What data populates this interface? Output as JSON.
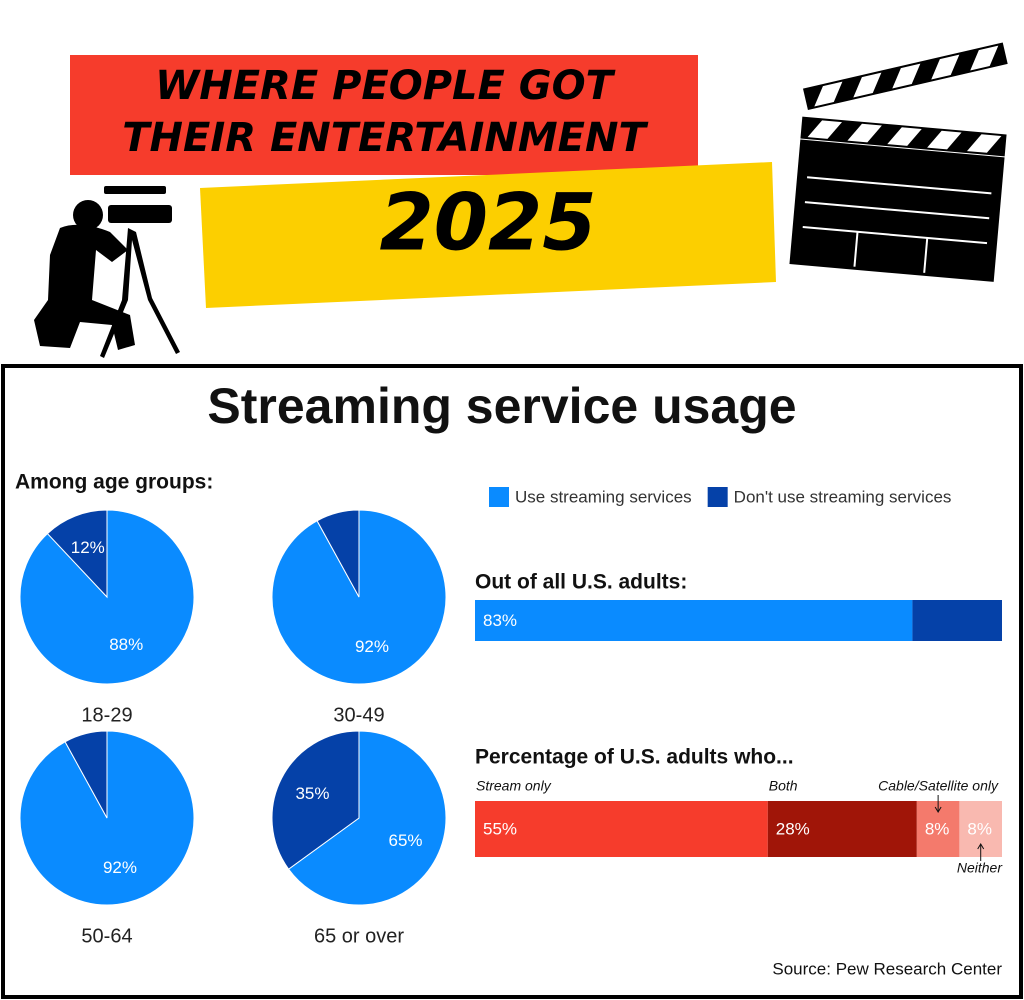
{
  "header": {
    "title": [
      "WHERE PEOPLE GOT",
      "THEIR ENTERTAINMENT"
    ],
    "year": "2025"
  },
  "heading": "Streaming service usage",
  "source": "Source: Pew Research Center",
  "chart_data": [
    {
      "type": "pie",
      "title": "Among age groups:",
      "colors": [
        "#0a8bff",
        "#0541a8"
      ],
      "series": [
        {
          "name": "18-29",
          "values": [
            88,
            12
          ],
          "value_labels": [
            "88%",
            "12%"
          ]
        },
        {
          "name": "30-49",
          "values": [
            92,
            8
          ],
          "value_labels": [
            "92%",
            null
          ]
        },
        {
          "name": "50-64",
          "values": [
            92,
            8
          ],
          "value_labels": [
            "92%",
            null
          ]
        },
        {
          "name": "65 or over",
          "values": [
            65,
            35
          ],
          "value_labels": [
            "65%",
            "35%"
          ]
        }
      ]
    },
    {
      "type": "stacked_bar",
      "title": "Out of all U.S. adults:",
      "legend": true,
      "series": [
        {
          "name": "Use streaming services",
          "color": "#0a8bff",
          "values": [
            83
          ],
          "value_labels": [
            "83%"
          ]
        },
        {
          "name": "Don't use streaming services",
          "color": "#0541a8",
          "values": [
            17
          ]
        }
      ]
    },
    {
      "type": "stacked_bar",
      "title": "Percentage of U.S. adults who...",
      "series": [
        {
          "name": "Stream only",
          "color": "#f63c2c",
          "values": [
            55
          ],
          "value_labels": [
            "55%"
          ]
        },
        {
          "name": "Both",
          "color": "#a01508",
          "values": [
            28
          ],
          "value_labels": [
            "28%"
          ]
        },
        {
          "name": "Cable/Satellite only",
          "color": "#f47a6c",
          "values": [
            8
          ],
          "value_labels": [
            "8%"
          ]
        },
        {
          "name": "Neither",
          "color": "#f9b9b0",
          "values": [
            8
          ],
          "value_labels": [
            "8%"
          ]
        }
      ]
    }
  ]
}
